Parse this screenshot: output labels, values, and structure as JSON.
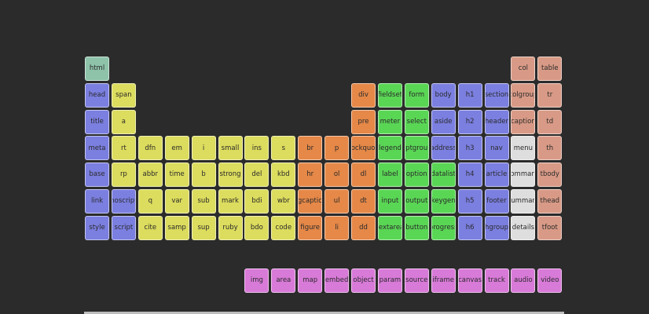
{
  "colors": {
    "teal": "#8ec3aa",
    "blue": "#7b7fe0",
    "yellow": "#dcdc5e",
    "orange": "#e58848",
    "green": "#5ad655",
    "pink": "#d87ad8",
    "salmon": "#d89a86",
    "gray": "#dedede"
  },
  "elements": [
    {
      "label": "html",
      "col": 0,
      "row": 0,
      "group": "teal"
    },
    {
      "label": "col",
      "col": 16,
      "row": 0,
      "group": "salmon"
    },
    {
      "label": "table",
      "col": 17,
      "row": 0,
      "group": "salmon"
    },
    {
      "label": "head",
      "col": 0,
      "row": 1,
      "group": "blue"
    },
    {
      "label": "span",
      "col": 1,
      "row": 1,
      "group": "yellow"
    },
    {
      "label": "div",
      "col": 10,
      "row": 1,
      "group": "orange"
    },
    {
      "label": "fieldset",
      "col": 11,
      "row": 1,
      "group": "green"
    },
    {
      "label": "form",
      "col": 12,
      "row": 1,
      "group": "green"
    },
    {
      "label": "body",
      "col": 13,
      "row": 1,
      "group": "blue"
    },
    {
      "label": "h1",
      "col": 14,
      "row": 1,
      "group": "blue"
    },
    {
      "label": "section",
      "col": 15,
      "row": 1,
      "group": "blue"
    },
    {
      "label": "colgroup",
      "col": 16,
      "row": 1,
      "group": "salmon"
    },
    {
      "label": "tr",
      "col": 17,
      "row": 1,
      "group": "salmon"
    },
    {
      "label": "title",
      "col": 0,
      "row": 2,
      "group": "blue"
    },
    {
      "label": "a",
      "col": 1,
      "row": 2,
      "group": "yellow"
    },
    {
      "label": "pre",
      "col": 10,
      "row": 2,
      "group": "orange"
    },
    {
      "label": "meter",
      "col": 11,
      "row": 2,
      "group": "green"
    },
    {
      "label": "select",
      "col": 12,
      "row": 2,
      "group": "green"
    },
    {
      "label": "aside",
      "col": 13,
      "row": 2,
      "group": "blue"
    },
    {
      "label": "h2",
      "col": 14,
      "row": 2,
      "group": "blue"
    },
    {
      "label": "header",
      "col": 15,
      "row": 2,
      "group": "blue"
    },
    {
      "label": "caption",
      "col": 16,
      "row": 2,
      "group": "salmon"
    },
    {
      "label": "td",
      "col": 17,
      "row": 2,
      "group": "salmon"
    },
    {
      "label": "meta",
      "col": 0,
      "row": 3,
      "group": "blue"
    },
    {
      "label": "rt",
      "col": 1,
      "row": 3,
      "group": "yellow"
    },
    {
      "label": "dfn",
      "col": 2,
      "row": 3,
      "group": "yellow"
    },
    {
      "label": "em",
      "col": 3,
      "row": 3,
      "group": "yellow"
    },
    {
      "label": "i",
      "col": 4,
      "row": 3,
      "group": "yellow"
    },
    {
      "label": "small",
      "col": 5,
      "row": 3,
      "group": "yellow"
    },
    {
      "label": "ins",
      "col": 6,
      "row": 3,
      "group": "yellow"
    },
    {
      "label": "s",
      "col": 7,
      "row": 3,
      "group": "yellow"
    },
    {
      "label": "br",
      "col": 8,
      "row": 3,
      "group": "orange"
    },
    {
      "label": "p",
      "col": 9,
      "row": 3,
      "group": "orange"
    },
    {
      "label": "blockquote",
      "col": 10,
      "row": 3,
      "group": "orange"
    },
    {
      "label": "legend",
      "col": 11,
      "row": 3,
      "group": "green"
    },
    {
      "label": "optgroup",
      "col": 12,
      "row": 3,
      "group": "green"
    },
    {
      "label": "address",
      "col": 13,
      "row": 3,
      "group": "blue"
    },
    {
      "label": "h3",
      "col": 14,
      "row": 3,
      "group": "blue"
    },
    {
      "label": "nav",
      "col": 15,
      "row": 3,
      "group": "blue"
    },
    {
      "label": "menu",
      "col": 16,
      "row": 3,
      "group": "gray"
    },
    {
      "label": "th",
      "col": 17,
      "row": 3,
      "group": "salmon"
    },
    {
      "label": "base",
      "col": 0,
      "row": 4,
      "group": "blue"
    },
    {
      "label": "rp",
      "col": 1,
      "row": 4,
      "group": "yellow"
    },
    {
      "label": "abbr",
      "col": 2,
      "row": 4,
      "group": "yellow"
    },
    {
      "label": "time",
      "col": 3,
      "row": 4,
      "group": "yellow"
    },
    {
      "label": "b",
      "col": 4,
      "row": 4,
      "group": "yellow"
    },
    {
      "label": "strong",
      "col": 5,
      "row": 4,
      "group": "yellow"
    },
    {
      "label": "del",
      "col": 6,
      "row": 4,
      "group": "yellow"
    },
    {
      "label": "kbd",
      "col": 7,
      "row": 4,
      "group": "yellow"
    },
    {
      "label": "hr",
      "col": 8,
      "row": 4,
      "group": "orange"
    },
    {
      "label": "ol",
      "col": 9,
      "row": 4,
      "group": "orange"
    },
    {
      "label": "dl",
      "col": 10,
      "row": 4,
      "group": "orange"
    },
    {
      "label": "label",
      "col": 11,
      "row": 4,
      "group": "green"
    },
    {
      "label": "option",
      "col": 12,
      "row": 4,
      "group": "green"
    },
    {
      "label": "datalist",
      "col": 13,
      "row": 4,
      "group": "green"
    },
    {
      "label": "h4",
      "col": 14,
      "row": 4,
      "group": "blue"
    },
    {
      "label": "article",
      "col": 15,
      "row": 4,
      "group": "blue"
    },
    {
      "label": "command",
      "col": 16,
      "row": 4,
      "group": "gray"
    },
    {
      "label": "tbody",
      "col": 17,
      "row": 4,
      "group": "salmon"
    },
    {
      "label": "link",
      "col": 0,
      "row": 5,
      "group": "blue"
    },
    {
      "label": "noscript",
      "col": 1,
      "row": 5,
      "group": "blue"
    },
    {
      "label": "q",
      "col": 2,
      "row": 5,
      "group": "yellow"
    },
    {
      "label": "var",
      "col": 3,
      "row": 5,
      "group": "yellow"
    },
    {
      "label": "sub",
      "col": 4,
      "row": 5,
      "group": "yellow"
    },
    {
      "label": "mark",
      "col": 5,
      "row": 5,
      "group": "yellow"
    },
    {
      "label": "bdi",
      "col": 6,
      "row": 5,
      "group": "yellow"
    },
    {
      "label": "wbr",
      "col": 7,
      "row": 5,
      "group": "yellow"
    },
    {
      "label": "figcaption",
      "col": 8,
      "row": 5,
      "group": "orange"
    },
    {
      "label": "ul",
      "col": 9,
      "row": 5,
      "group": "orange"
    },
    {
      "label": "dt",
      "col": 10,
      "row": 5,
      "group": "orange"
    },
    {
      "label": "input",
      "col": 11,
      "row": 5,
      "group": "green"
    },
    {
      "label": "output",
      "col": 12,
      "row": 5,
      "group": "green"
    },
    {
      "label": "keygen",
      "col": 13,
      "row": 5,
      "group": "green"
    },
    {
      "label": "h5",
      "col": 14,
      "row": 5,
      "group": "blue"
    },
    {
      "label": "footer",
      "col": 15,
      "row": 5,
      "group": "blue"
    },
    {
      "label": "summary",
      "col": 16,
      "row": 5,
      "group": "gray"
    },
    {
      "label": "thead",
      "col": 17,
      "row": 5,
      "group": "salmon"
    },
    {
      "label": "style",
      "col": 0,
      "row": 6,
      "group": "blue"
    },
    {
      "label": "script",
      "col": 1,
      "row": 6,
      "group": "blue"
    },
    {
      "label": "cite",
      "col": 2,
      "row": 6,
      "group": "yellow"
    },
    {
      "label": "samp",
      "col": 3,
      "row": 6,
      "group": "yellow"
    },
    {
      "label": "sup",
      "col": 4,
      "row": 6,
      "group": "yellow"
    },
    {
      "label": "ruby",
      "col": 5,
      "row": 6,
      "group": "yellow"
    },
    {
      "label": "bdo",
      "col": 6,
      "row": 6,
      "group": "yellow"
    },
    {
      "label": "code",
      "col": 7,
      "row": 6,
      "group": "yellow"
    },
    {
      "label": "figure",
      "col": 8,
      "row": 6,
      "group": "orange"
    },
    {
      "label": "li",
      "col": 9,
      "row": 6,
      "group": "orange"
    },
    {
      "label": "dd",
      "col": 10,
      "row": 6,
      "group": "orange"
    },
    {
      "label": "textarea",
      "col": 11,
      "row": 6,
      "group": "green"
    },
    {
      "label": "button",
      "col": 12,
      "row": 6,
      "group": "green"
    },
    {
      "label": "progress",
      "col": 13,
      "row": 6,
      "group": "green"
    },
    {
      "label": "h6",
      "col": 14,
      "row": 6,
      "group": "blue"
    },
    {
      "label": "hgroup",
      "col": 15,
      "row": 6,
      "group": "blue"
    },
    {
      "label": "details",
      "col": 16,
      "row": 6,
      "group": "gray"
    },
    {
      "label": "tfoot",
      "col": 17,
      "row": 6,
      "group": "salmon"
    },
    {
      "label": "img",
      "col": 6,
      "row": 8,
      "group": "pink"
    },
    {
      "label": "area",
      "col": 7,
      "row": 8,
      "group": "pink"
    },
    {
      "label": "map",
      "col": 8,
      "row": 8,
      "group": "pink"
    },
    {
      "label": "embed",
      "col": 9,
      "row": 8,
      "group": "pink"
    },
    {
      "label": "object",
      "col": 10,
      "row": 8,
      "group": "pink"
    },
    {
      "label": "param",
      "col": 11,
      "row": 8,
      "group": "pink"
    },
    {
      "label": "source",
      "col": 12,
      "row": 8,
      "group": "pink"
    },
    {
      "label": "iframe",
      "col": 13,
      "row": 8,
      "group": "pink"
    },
    {
      "label": "canvas",
      "col": 14,
      "row": 8,
      "group": "pink"
    },
    {
      "label": "track",
      "col": 15,
      "row": 8,
      "group": "pink"
    },
    {
      "label": "audio",
      "col": 16,
      "row": 8,
      "group": "pink"
    },
    {
      "label": "video",
      "col": 17,
      "row": 8,
      "group": "pink"
    }
  ]
}
